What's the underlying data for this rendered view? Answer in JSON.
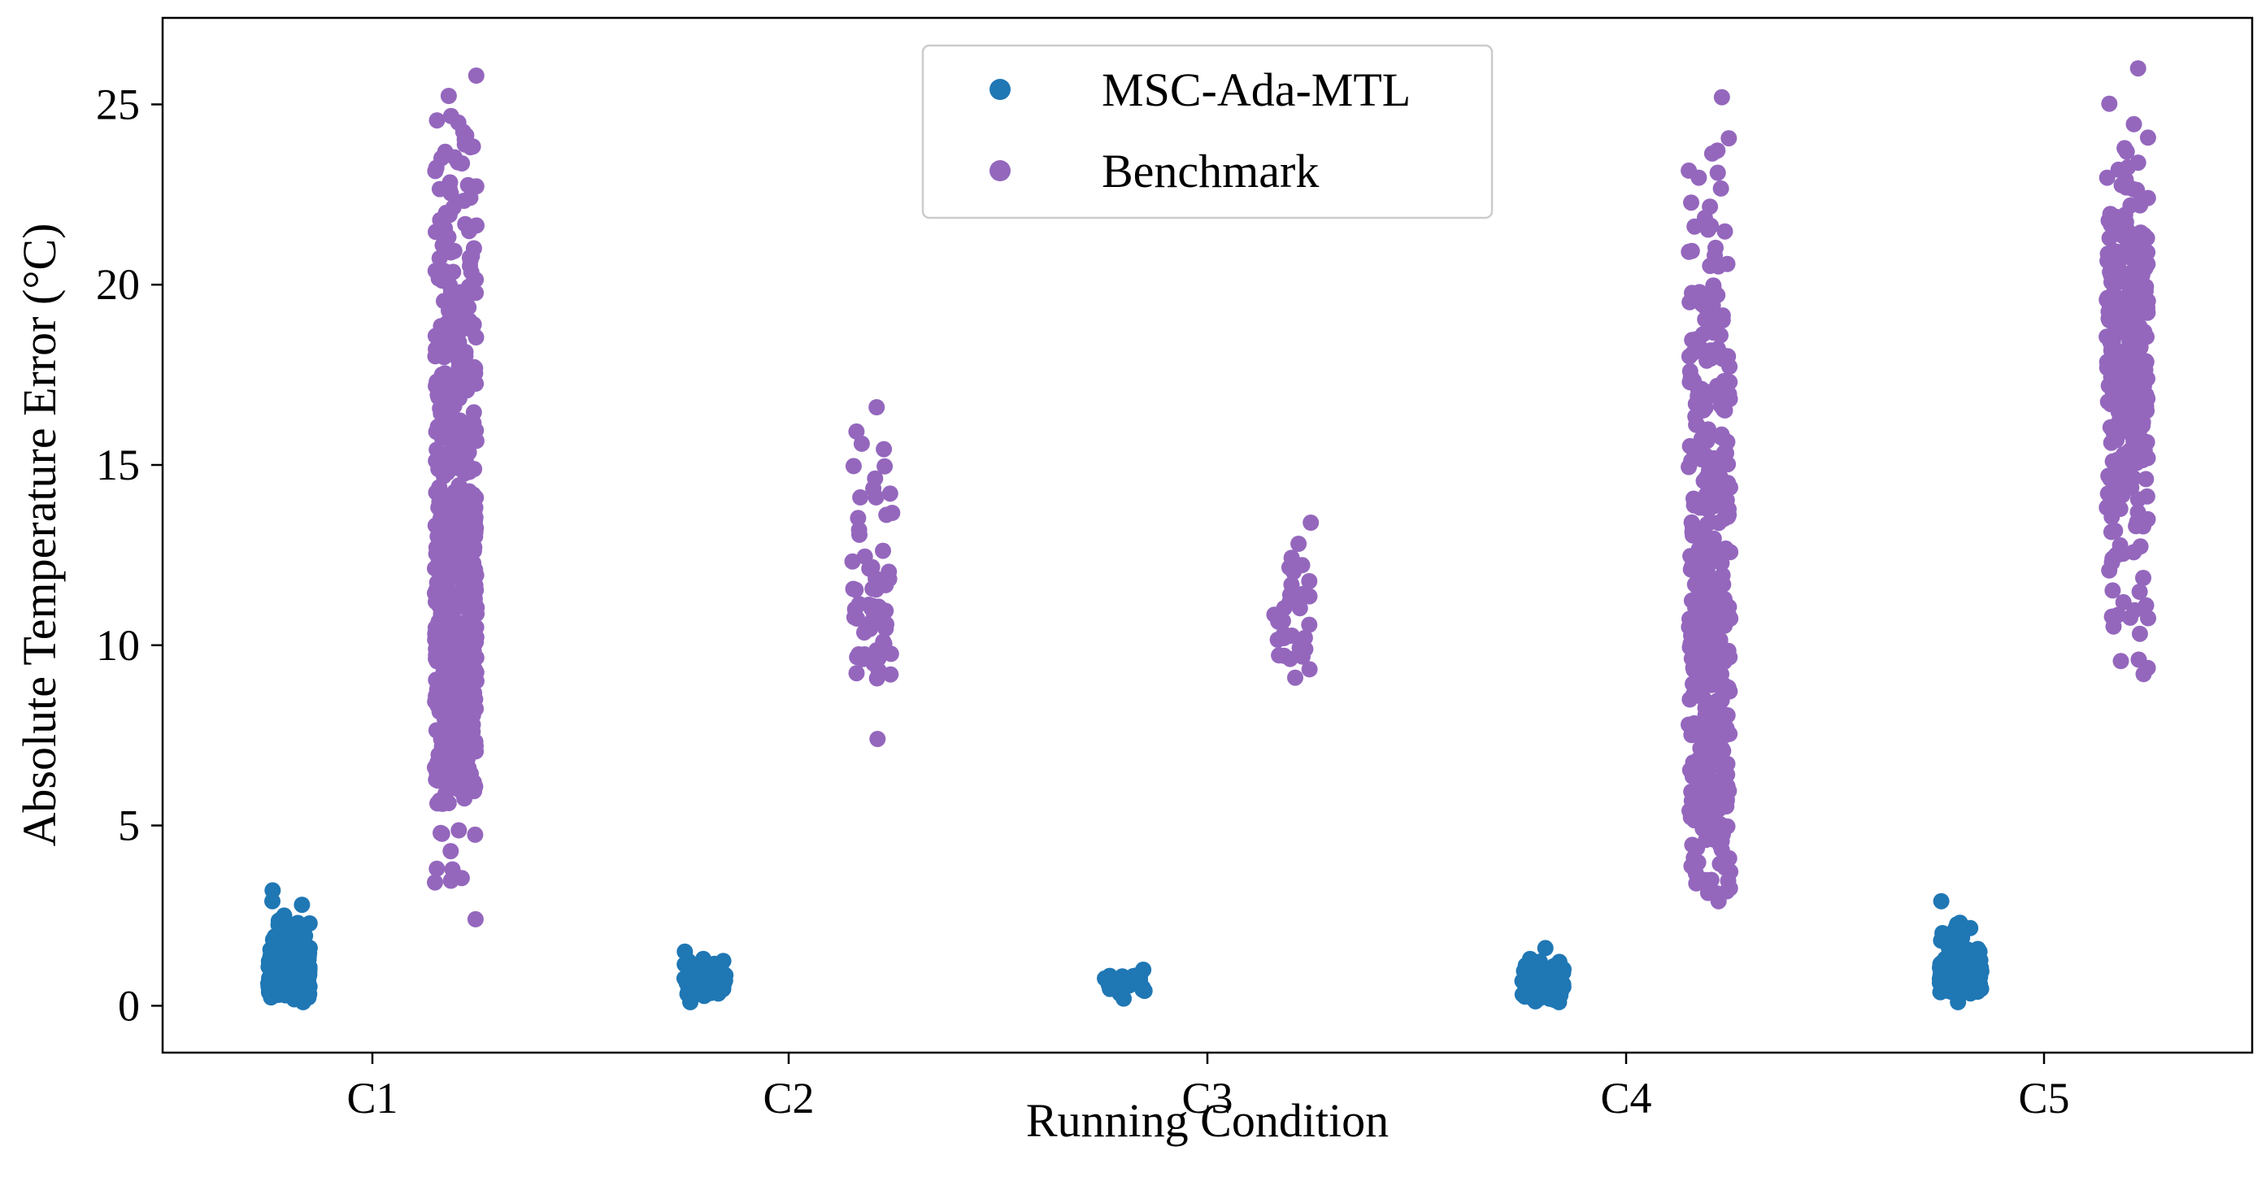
{
  "chart_data": {
    "type": "scatter",
    "subtype": "strip",
    "title": "",
    "xlabel": "Running Condition",
    "ylabel": "Absolute Temperature Error (°C)",
    "categories": [
      "C1",
      "C2",
      "C3",
      "C4",
      "C5"
    ],
    "ylim": [
      -1.3,
      27.4
    ],
    "yticks": [
      0,
      5,
      10,
      15,
      20,
      25
    ],
    "grid": false,
    "legend": "top-center",
    "series": [
      {
        "name": "MSC-Ada-MTL",
        "color": "#1f77b4",
        "offset": -0.2,
        "groups": [
          {
            "count": 260,
            "min": 0.1,
            "max": 2.5,
            "mode": 0.7,
            "outliers": [
              3.2,
              2.9,
              2.8
            ]
          },
          {
            "count": 90,
            "min": 0.1,
            "max": 1.3,
            "mode": 0.6,
            "outliers": [
              1.5
            ]
          },
          {
            "count": 30,
            "min": 0.2,
            "max": 1.0,
            "mode": 0.7,
            "outliers": []
          },
          {
            "count": 130,
            "min": 0.1,
            "max": 1.3,
            "mode": 0.4,
            "outliers": [
              1.6
            ]
          },
          {
            "count": 200,
            "min": 0.1,
            "max": 2.3,
            "mode": 0.8,
            "outliers": [
              2.9
            ]
          }
        ]
      },
      {
        "name": "Benchmark",
        "color": "#9467bd",
        "offset": 0.2,
        "groups": [
          {
            "count": 700,
            "min": 2.4,
            "max": 25.8,
            "mode": 10.0,
            "outliers": []
          },
          {
            "count": 60,
            "min": 7.4,
            "max": 16.6,
            "mode": 10.5,
            "outliers": []
          },
          {
            "count": 30,
            "min": 9.1,
            "max": 13.4,
            "mode": 10.0,
            "outliers": []
          },
          {
            "count": 400,
            "min": 2.9,
            "max": 25.2,
            "mode": 7.0,
            "outliers": []
          },
          {
            "count": 330,
            "min": 9.2,
            "max": 26.0,
            "mode": 18.0,
            "outliers": []
          }
        ]
      }
    ]
  }
}
